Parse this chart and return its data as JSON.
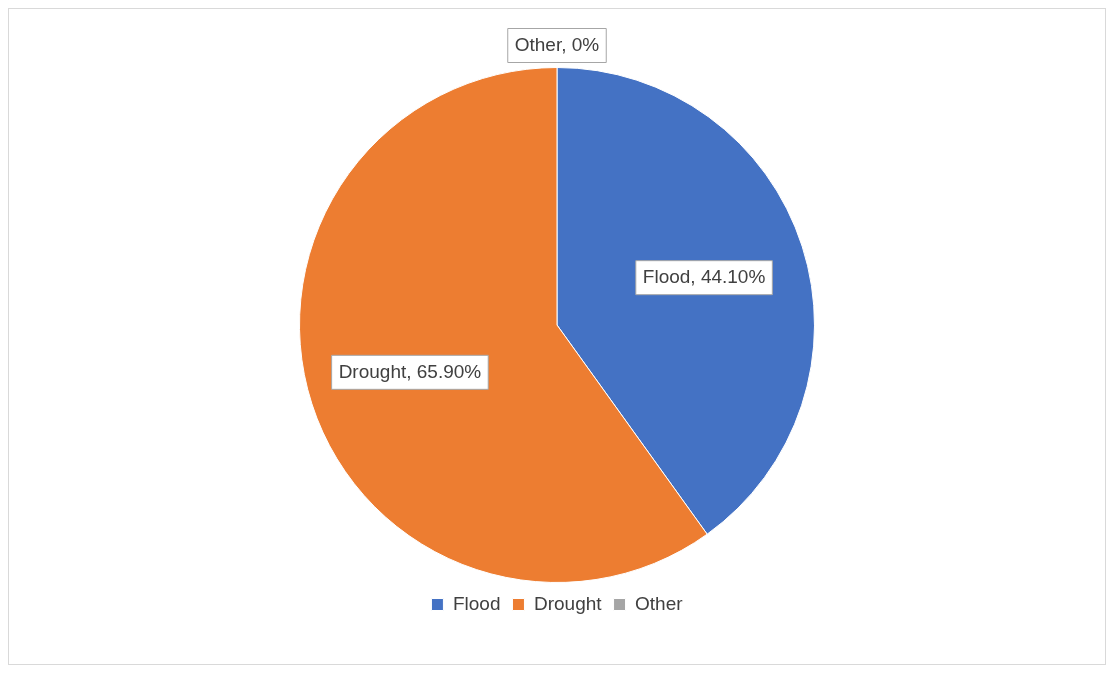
{
  "chart_data": {
    "type": "pie",
    "categories": [
      "Flood",
      "Drought",
      "Other"
    ],
    "values": [
      44.1,
      65.9,
      0
    ],
    "colors": [
      "#4472c4",
      "#ed7d31",
      "#a5a5a5"
    ],
    "value_labels": [
      "Flood, 44.10%",
      "Drought, 65.90%",
      "Other, 0%"
    ],
    "legend": "bottom"
  }
}
